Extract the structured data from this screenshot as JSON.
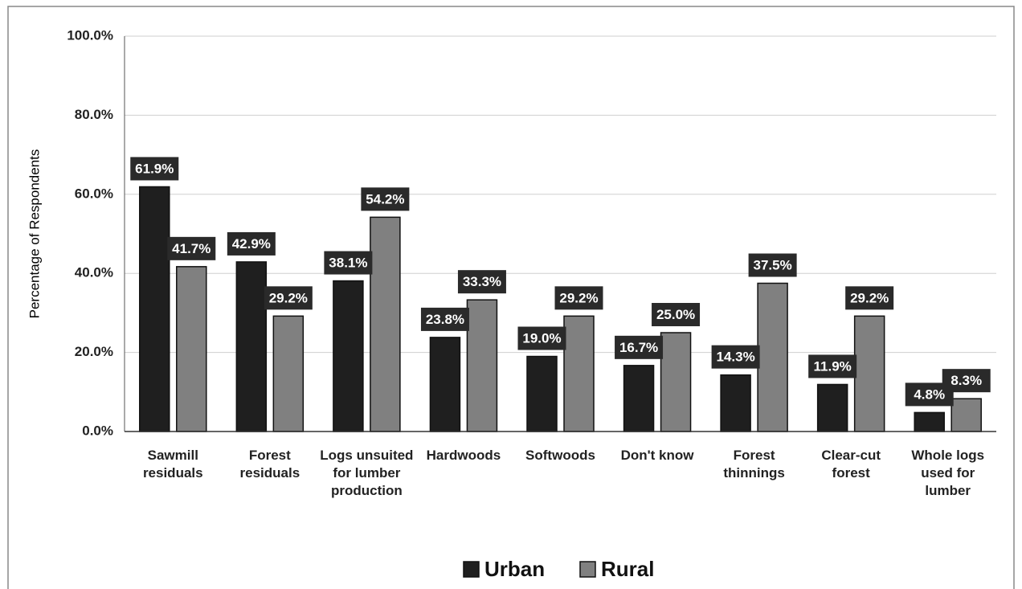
{
  "chart_data": {
    "type": "bar",
    "y_label": "Percentage of Respondents",
    "categories": [
      "Sawmill residuals",
      "Forest residuals",
      "Logs unsuited for lumber production",
      "Hardwoods",
      "Softwoods",
      "Don't know",
      "Forest thinnings",
      "Clear-cut forest",
      "Whole logs used for lumber"
    ],
    "series": [
      {
        "name": "Urban",
        "color": "#1f1f1f",
        "values": [
          61.9,
          42.9,
          38.1,
          23.8,
          19.0,
          16.7,
          14.3,
          11.9,
          4.8
        ],
        "value_labels": [
          "61.9%",
          "42.9%",
          "38.1%",
          "23.8%",
          "19.0%",
          "16.7%",
          "14.3%",
          "11.9%",
          "4.8%"
        ]
      },
      {
        "name": "Rural",
        "color": "#808080",
        "values": [
          41.7,
          29.2,
          54.2,
          33.3,
          29.2,
          25.0,
          37.5,
          29.2,
          8.3
        ],
        "value_labels": [
          "41.7%",
          "29.2%",
          "54.2%",
          "33.3%",
          "29.2%",
          "25.0%",
          "37.5%",
          "29.2%",
          "8.3%"
        ]
      }
    ],
    "ylim": [
      0,
      100
    ],
    "yticks": [
      {
        "value": 0,
        "label": "0.0%"
      },
      {
        "value": 20,
        "label": "20.0%"
      },
      {
        "value": 40,
        "label": "40.0%"
      },
      {
        "value": 60,
        "label": "60.0%"
      },
      {
        "value": 80,
        "label": "80.0%"
      },
      {
        "value": 100,
        "label": "100.0%"
      }
    ],
    "grid": true,
    "legend": "bottom"
  }
}
